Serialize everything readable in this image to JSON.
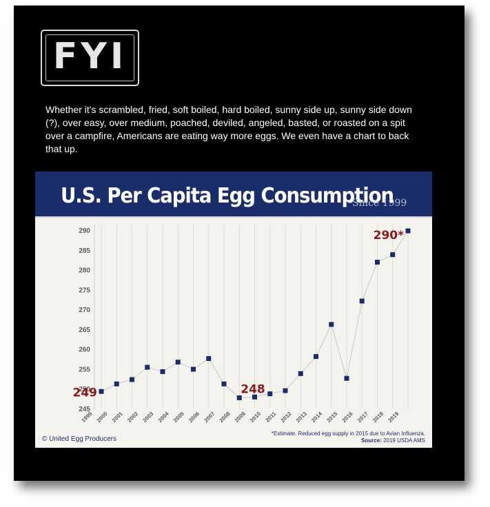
{
  "logo": {
    "text": "FYI"
  },
  "intro": "Whether it's scrambled, fried, soft boiled, hard boiled, sunny side up, sunny side down (?), over easy, over medium, poached, deviled, angeled, basted, or roasted on a spit over a campfire, Americans are eating way more eggs. We even have a chart to back that up.",
  "colors": {
    "panel": "#000000",
    "banner": "#1a2d6b",
    "marker": "#1a2d6b",
    "callout": "#8b1a1a",
    "card": "#f5f3ee"
  },
  "credit": "© United Egg Producers",
  "footnote": {
    "note": "*Estimate.  Reduced egg supply in 2015 due to Avian Influenza.",
    "source_label": "Source:",
    "source_value": "2019 USDA AMS"
  },
  "chart_data": {
    "type": "line",
    "title": "U.S. Per Capita Egg Consumption",
    "subtitle": "Since 1999",
    "x": [
      "1999",
      "2000",
      "2001",
      "2002",
      "2003",
      "2004",
      "2005",
      "2006",
      "2007",
      "2008",
      "2009",
      "2010",
      "2011",
      "2012",
      "2013",
      "2014",
      "2015",
      "2016",
      "2017",
      "2018",
      "2019"
    ],
    "values": [
      249.3,
      251.2,
      252.3,
      255.4,
      254.3,
      256.7,
      254.9,
      257.6,
      251.2,
      247.7,
      247.9,
      248.7,
      249.5,
      253.8,
      258.1,
      266.2,
      252.6,
      272.1,
      281.9,
      283.8,
      289.8
    ],
    "ylim": [
      245,
      290
    ],
    "yticks": [
      245,
      250,
      255,
      260,
      265,
      270,
      275,
      280,
      285,
      290
    ],
    "grid": "vertical",
    "annotations": [
      {
        "label": "249",
        "index": 0
      },
      {
        "label": "248",
        "index": 9
      },
      {
        "label": "290*",
        "index": 20
      }
    ]
  }
}
